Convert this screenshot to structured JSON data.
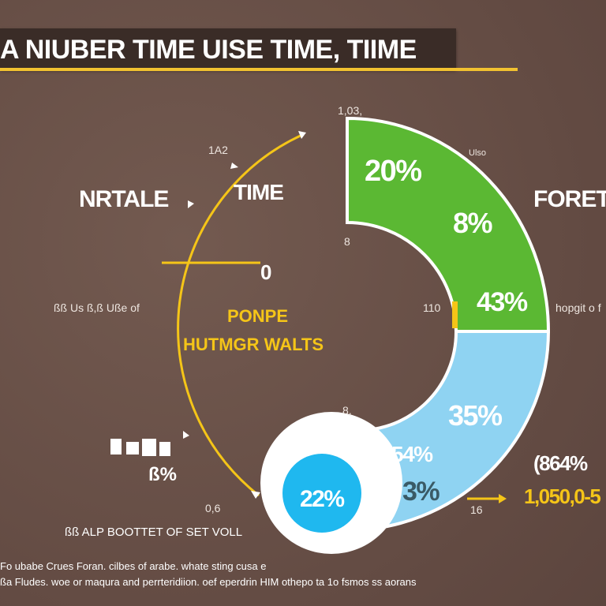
{
  "title": "A NIUBER TIME UISE TIME, TIIME",
  "colors": {
    "background": "#6a5249",
    "green": "#5bb833",
    "light_blue": "#8fd3f2",
    "cyan": "#1fb8ef",
    "yellow": "#f5c518",
    "white_ring": "#ffffff"
  },
  "labels": {
    "top_small_1": "1,03,",
    "top_small_2": "1A2",
    "top_small_3": "Ulso",
    "left_big": "NRTALE",
    "time": "TIME",
    "right_big": "FORETI",
    "zero": "0",
    "mid_small_1": "8",
    "left_line": "ßß Us ß,ß Uße of",
    "axis_110": "110",
    "right_line": "hopgit o f",
    "center_line_1": "PONPE",
    "center_line_2": "HUTMGR WALTS",
    "mid_small_2": "8,",
    "blob_text": "ß%",
    "right_pct": "(864%",
    "right_value": "1,050,0-5",
    "arrow_label": "16",
    "bottom_small": "0,6",
    "bottom_label": "ßß ALP BOOTTET OF SET VOLL",
    "caption_1": "Fo ubabe Crues Foran. cilbes of arabe. whate sting cusa e",
    "caption_2": "ßa Fludes. woe or maqura and perrteridiion. oef eperdrin HIM othepo ta 1o fsmos ss aorans"
  },
  "chart_data": {
    "type": "pie",
    "title": "A NIUBER TIME UISE TIME, TIIME",
    "segments": [
      {
        "name": "",
        "color": "#5bb833",
        "labels": [
          "20%",
          "8%",
          "43%"
        ]
      },
      {
        "name": "",
        "color": "#8fd3f2",
        "labels": [
          "35%",
          "54%",
          "3%"
        ]
      },
      {
        "name": "",
        "color": "#1fb8ef",
        "labels": [
          "22%"
        ]
      }
    ],
    "values_percent": [
      20,
      8,
      43,
      35,
      54,
      3,
      22
    ],
    "annotations": [
      "(864%",
      "1,050,0-5"
    ]
  }
}
